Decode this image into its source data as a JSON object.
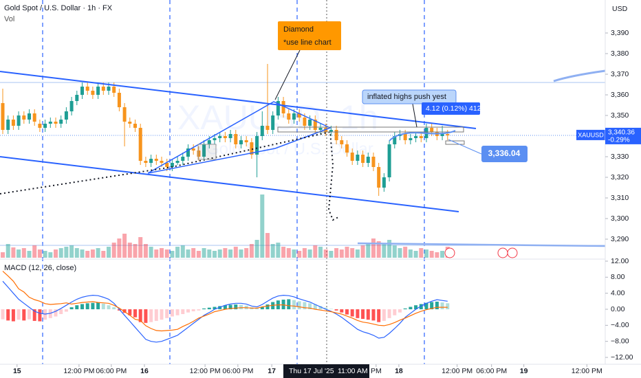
{
  "header": {
    "title": "Gold Spot / U.S. Dollar · 1h · FX",
    "volume_label": "Vol",
    "currency": "USD",
    "watermark_symbol": "XAUUSD, 1h",
    "watermark_name": "Gold Spot / U.S. Dollar"
  },
  "annotations": {
    "callout_title": "Diamond",
    "callout_note": "*use line chart",
    "note": "inflated highs push yest",
    "measure": "4.12 (0.12%) 412",
    "line_label": "3,336.04"
  },
  "price_tag": {
    "symbol": "XAUUSD",
    "value": 3340.36,
    "label": "3,340.36",
    "change": "-0.29%"
  },
  "crosshair": {
    "date": "Thu 17 Jul '25",
    "time": "11:00 AM"
  },
  "chart_data": [
    {
      "type": "candlestick",
      "open": [
        3356,
        3343,
        3348,
        3345,
        3350,
        3348,
        3351,
        3346,
        3344,
        3346,
        3347,
        3346,
        3348,
        3352,
        3357,
        3360,
        3364,
        3362,
        3360,
        3364,
        3362,
        3364,
        3361,
        3354,
        3347,
        3346,
        3344,
        3328,
        3327,
        3329,
        3328,
        3327,
        3325,
        3327,
        3328,
        3330,
        3334,
        3333,
        3330,
        3336,
        3338,
        3339,
        3340,
        3339,
        3341,
        3336,
        3338,
        3337,
        3331,
        3340,
        3345,
        3343,
        3350,
        3357,
        3351,
        3348,
        3351,
        3349,
        3345,
        3348,
        3343,
        3344,
        3342,
        3343,
        3338,
        3336,
        3332,
        3328,
        3331,
        3327,
        3330,
        3325,
        3315,
        3320,
        3336,
        3340,
        3341,
        3338,
        3339,
        3340,
        3339,
        3344,
        3342,
        3340,
        3341
      ],
      "high": [
        3363,
        3350,
        3350,
        3352,
        3352,
        3353,
        3353,
        3348,
        3348,
        3349,
        3349,
        3350,
        3354,
        3359,
        3362,
        3366,
        3366,
        3364,
        3366,
        3366,
        3366,
        3366,
        3363,
        3356,
        3349,
        3348,
        3346,
        3330,
        3331,
        3331,
        3330,
        3329,
        3329,
        3330,
        3332,
        3336,
        3336,
        3335,
        3338,
        3340,
        3341,
        3342,
        3342,
        3343,
        3343,
        3340,
        3340,
        3339,
        3342,
        3352,
        3375,
        3352,
        3359,
        3359,
        3353,
        3353,
        3353,
        3351,
        3350,
        3350,
        3346,
        3346,
        3345,
        3345,
        3340,
        3338,
        3334,
        3333,
        3333,
        3332,
        3332,
        3327,
        3322,
        3338,
        3342,
        3343,
        3343,
        3341,
        3342,
        3342,
        3346,
        3346,
        3344,
        3345,
        3343
      ],
      "low": [
        3341,
        3341,
        3343,
        3343,
        3346,
        3346,
        3345,
        3342,
        3342,
        3344,
        3344,
        3344,
        3346,
        3350,
        3355,
        3358,
        3360,
        3358,
        3358,
        3360,
        3360,
        3359,
        3352,
        3335,
        3344,
        3342,
        3326,
        3325,
        3325,
        3326,
        3325,
        3323,
        3323,
        3326,
        3326,
        3328,
        3331,
        3328,
        3328,
        3334,
        3336,
        3337,
        3337,
        3337,
        3334,
        3334,
        3335,
        3329,
        3320,
        3338,
        3341,
        3341,
        3348,
        3349,
        3346,
        3346,
        3347,
        3343,
        3343,
        3341,
        3341,
        3340,
        3340,
        3336,
        3334,
        3330,
        3326,
        3326,
        3325,
        3325,
        3323,
        3311,
        3313,
        3318,
        3334,
        3338,
        3336,
        3336,
        3337,
        3337,
        3337,
        3340,
        3338,
        3338,
        3338
      ],
      "close": [
        3343,
        3348,
        3345,
        3350,
        3348,
        3351,
        3347,
        3344,
        3346,
        3347,
        3346,
        3348,
        3352,
        3357,
        3360,
        3364,
        3362,
        3360,
        3364,
        3362,
        3364,
        3361,
        3354,
        3347,
        3346,
        3344,
        3328,
        3327,
        3329,
        3328,
        3327,
        3325,
        3327,
        3328,
        3330,
        3334,
        3333,
        3330,
        3336,
        3338,
        3339,
        3340,
        3339,
        3341,
        3336,
        3338,
        3337,
        3331,
        3340,
        3345,
        3343,
        3350,
        3357,
        3351,
        3348,
        3351,
        3349,
        3345,
        3348,
        3343,
        3344,
        3342,
        3343,
        3338,
        3336,
        3332,
        3328,
        3331,
        3327,
        3330,
        3325,
        3315,
        3320,
        3336,
        3340,
        3341,
        3338,
        3339,
        3340,
        3339,
        3344,
        3342,
        3340,
        3341,
        3340.36
      ],
      "volume": [
        8,
        20,
        15,
        12,
        14,
        10,
        18,
        12,
        10,
        8,
        12,
        14,
        16,
        18,
        14,
        12,
        10,
        12,
        14,
        10,
        16,
        22,
        28,
        35,
        22,
        20,
        30,
        20,
        16,
        12,
        14,
        12,
        10,
        16,
        18,
        12,
        14,
        10,
        14,
        12,
        10,
        12,
        14,
        12,
        16,
        12,
        14,
        20,
        26,
        92,
        36,
        20,
        22,
        16,
        14,
        12,
        10,
        14,
        12,
        18,
        16,
        12,
        10,
        14,
        12,
        16,
        14,
        12,
        18,
        20,
        28,
        24,
        20,
        26,
        18,
        14,
        16,
        12,
        10,
        14,
        12,
        10,
        8,
        10,
        16
      ],
      "up_color": "#1e9e94",
      "down_color": "#f7941d",
      "volume_colors": [
        "rgba(38,166,154,0.5)",
        "rgba(242,54,69,0.45)"
      ],
      "xlim": [
        -0.52,
        113.77
      ],
      "xticks": [
        {
          "value": 2.7,
          "label": "15"
        },
        {
          "value": 14.4,
          "label": "12:00 PM"
        },
        {
          "value": 20.5,
          "label": "06:00 PM"
        },
        {
          "value": 26.75,
          "label": "16"
        },
        {
          "value": 38.2,
          "label": "12:00 PM"
        },
        {
          "value": 44.4,
          "label": "06:00 PM"
        },
        {
          "value": 50.8,
          "label": "17"
        },
        {
          "value": 70.5,
          "label": "PM"
        },
        {
          "value": 74.8,
          "label": "18"
        },
        {
          "value": 85.8,
          "label": "12:00 PM"
        },
        {
          "value": 92.3,
          "label": "06:00 PM"
        },
        {
          "value": 98.4,
          "label": "19"
        },
        {
          "value": 110.3,
          "label": "12:00 PM"
        }
      ],
      "ylim": [
        3281,
        3406
      ],
      "yticks": [
        {
          "value": 3290,
          "label": "3,290"
        },
        {
          "value": 3300,
          "label": "3,300"
        },
        {
          "value": 3310,
          "label": "3,310"
        },
        {
          "value": 3320,
          "label": "3,320"
        },
        {
          "value": 3330,
          "label": "3,330"
        },
        {
          "value": 3340,
          "label": "3,340"
        },
        {
          "value": 3350,
          "label": "3,350"
        },
        {
          "value": 3360,
          "label": "3,360"
        },
        {
          "value": 3370,
          "label": "3,370"
        },
        {
          "value": 3380,
          "label": "3,380"
        },
        {
          "value": 3390,
          "label": "3,390"
        }
      ],
      "grid": false
    },
    {
      "type": "macd",
      "title": "MACD (12, 26, close)",
      "histogram": [
        -2.5,
        -2.8,
        -3,
        -2.6,
        -2.8,
        -2.5,
        -2.9,
        -3,
        -2.6,
        -2.2,
        -1.8,
        -1.2,
        -0.6,
        0.5,
        1,
        1.3,
        1.5,
        1.6,
        1.7,
        1.4,
        1.0,
        0.5,
        -0.3,
        -0.9,
        -1.5,
        -2,
        -3.2,
        -3.4,
        -3.2,
        -2.9,
        -2.6,
        -2.2,
        -1.8,
        -1.5,
        -1.2,
        -0.8,
        -0.5,
        -0.3,
        0.2,
        0.4,
        0.6,
        0.8,
        1,
        1.1,
        1.2,
        1.1,
        0.9,
        0.5,
        0.3,
        0.6,
        1.2,
        1.8,
        2.2,
        2.4,
        2.5,
        2.3,
        2.0,
        1.8,
        1.5,
        1.2,
        0.8,
        0.4,
        0.1,
        -0.3,
        -0.8,
        -1.3,
        -1.8,
        -2.2,
        -2.4,
        -2.6,
        -2.8,
        -3.2,
        -2.9,
        -2.2,
        -1.5,
        -0.8,
        0.2,
        0.6,
        1,
        1.3,
        1.6,
        1.8,
        1.9,
        1.7,
        1.5
      ],
      "histogram_colors": [
        "#26a69a",
        "#b2dfdb",
        "#ffcdd2",
        "#ff5252"
      ],
      "series": [
        {
          "color": "#2962ff",
          "values": [
            7,
            5.5,
            4,
            2.5,
            1.5,
            0.5,
            -0.5,
            -1,
            -1.2,
            -1,
            -0.5,
            0.2,
            1,
            1.8,
            2.5,
            3,
            3.3,
            3.5,
            3.4,
            3,
            2.5,
            1.5,
            0,
            -1.5,
            -3,
            -4.5,
            -6,
            -7.5,
            -8,
            -8.2,
            -8,
            -7.5,
            -7,
            -6.5,
            -5.5,
            -4.5,
            -3.5,
            -2.5,
            -1.5,
            -0.8,
            0,
            0.5,
            1,
            1.3,
            1.5,
            1.5,
            1.3,
            0.8,
            0.6,
            1.2,
            2,
            2.8,
            3.3,
            3.5,
            3.4,
            3.1,
            2.6,
            2.2,
            1.8,
            1.2,
            0.6,
            0,
            -0.5,
            -1.2,
            -2,
            -3,
            -4,
            -5,
            -5.6,
            -6,
            -6.5,
            -7.2,
            -7,
            -6,
            -4.8,
            -3.5,
            -2,
            -1,
            0,
            0.8,
            1.5,
            2,
            2.4,
            2.2,
            2
          ]
        },
        {
          "color": "#ff6d00",
          "values": [
            9.5,
            8.3,
            7,
            5.1,
            4.3,
            3,
            2.4,
            2,
            1.4,
            1.2,
            1.3,
            1.4,
            1.6,
            1.3,
            1.5,
            1.7,
            1.8,
            1.9,
            1.7,
            1.6,
            1.5,
            1,
            0.3,
            -0.6,
            -1.5,
            -2.5,
            -2.8,
            -4.1,
            -4.8,
            -5.3,
            -5.4,
            -5.3,
            -5.2,
            -5,
            -4.3,
            -3.7,
            -3,
            -2.2,
            -1.7,
            -1.2,
            -0.6,
            -0.3,
            0,
            0.2,
            0.3,
            0.4,
            0.4,
            0.3,
            0.3,
            0.6,
            0.8,
            1,
            1.1,
            1.1,
            0.9,
            0.8,
            0.6,
            0.4,
            0.3,
            0,
            -0.2,
            -0.4,
            -0.6,
            -0.9,
            -1.2,
            -1.7,
            -2.2,
            -2.8,
            -3.2,
            -3.4,
            -3.7,
            -4,
            -4.1,
            -3.8,
            -3.3,
            -2.7,
            -2.2,
            -1.6,
            -1,
            -0.5,
            -0.1,
            0.2,
            0.5,
            0.5,
            0.5
          ]
        }
      ],
      "ylim": [
        -13.71,
        12.34
      ],
      "yticks": [
        {
          "value": 12,
          "label": "12.00"
        },
        {
          "value": 8,
          "label": "8.00"
        },
        {
          "value": 4,
          "label": "4.00"
        },
        {
          "value": 0,
          "label": "0.00"
        },
        {
          "value": -4,
          "label": "−4.00"
        },
        {
          "value": -8,
          "label": "−8.00"
        },
        {
          "value": -12,
          "label": "−12.00"
        }
      ]
    }
  ]
}
